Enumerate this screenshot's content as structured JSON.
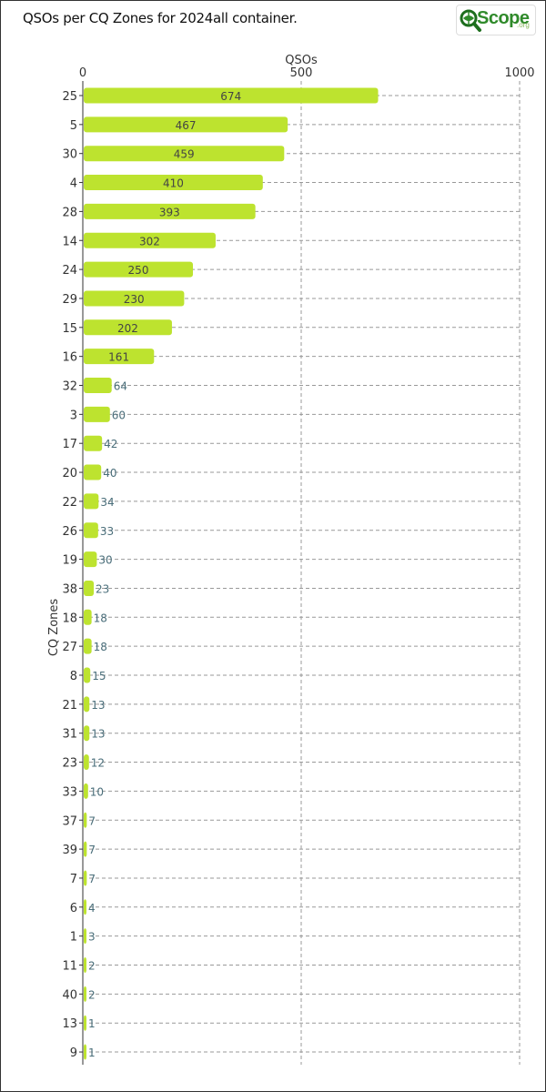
{
  "title": "QSOs per CQ Zones for 2024all container.",
  "logo": {
    "text": "Scope",
    "suffix": ".org"
  },
  "colors": {
    "bar": "#bde32f",
    "label_inside": "#444444",
    "label_outside": "#4a6e7a",
    "grid": "#999999"
  },
  "chart_data": {
    "type": "bar",
    "orientation": "horizontal",
    "xlabel": "QSOs",
    "ylabel": "CQ Zones",
    "xlim": [
      0,
      1000
    ],
    "xticks": [
      0,
      500,
      1000
    ],
    "grid": true,
    "categories": [
      "25",
      "5",
      "30",
      "4",
      "28",
      "14",
      "24",
      "29",
      "15",
      "16",
      "32",
      "3",
      "17",
      "20",
      "22",
      "26",
      "19",
      "38",
      "18",
      "27",
      "8",
      "21",
      "31",
      "23",
      "33",
      "37",
      "39",
      "7",
      "6",
      "1",
      "11",
      "40",
      "13",
      "9"
    ],
    "values": [
      674,
      467,
      459,
      410,
      393,
      302,
      250,
      230,
      202,
      161,
      64,
      60,
      42,
      40,
      34,
      33,
      30,
      23,
      18,
      18,
      15,
      13,
      13,
      12,
      10,
      7,
      7,
      7,
      4,
      3,
      2,
      2,
      1,
      1
    ]
  }
}
